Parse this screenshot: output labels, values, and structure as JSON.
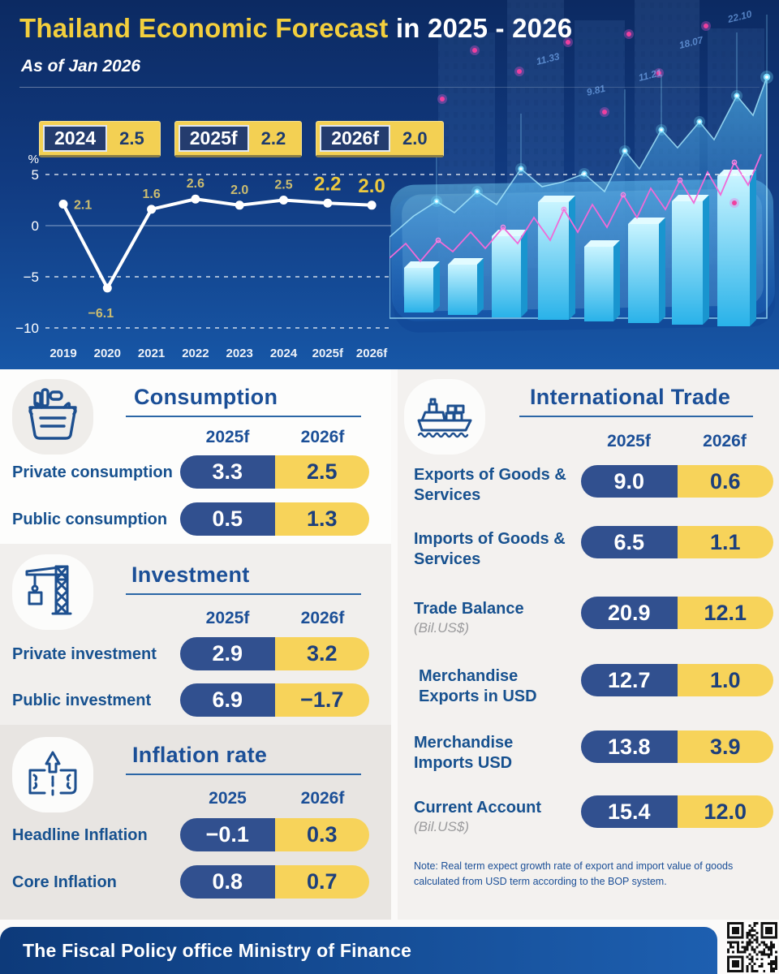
{
  "header": {
    "title_highlight": "Thailand Economic Forecast",
    "title_rest": " in 2025 - 2026",
    "as_of": "As of Jan 2026"
  },
  "summary_badges": [
    {
      "year": "2024",
      "value": "2.5"
    },
    {
      "year": "2025f",
      "value": "2.2"
    },
    {
      "year": "2026f",
      "value": "2.0"
    }
  ],
  "chart_data": {
    "type": "line",
    "title": "",
    "ylabel": "%",
    "categories": [
      "2019",
      "2020",
      "2021",
      "2022",
      "2023",
      "2024",
      "2025f",
      "2026f"
    ],
    "values": [
      2.1,
      -6.1,
      1.6,
      2.6,
      2.0,
      2.5,
      2.2,
      2.0
    ],
    "point_labels": [
      "2.1",
      "−6.1",
      "1.6",
      "2.6",
      "2.0",
      "2.5",
      "2.2",
      "2.0"
    ],
    "emphasized_indexes": [
      6,
      7
    ],
    "yticks": [
      {
        "v": 5,
        "label": "5"
      },
      {
        "v": 0,
        "label": "0"
      },
      {
        "v": -5,
        "label": "−5"
      },
      {
        "v": -10,
        "label": "−10"
      }
    ],
    "ylim": [
      -12.5,
      6.5
    ],
    "grid": "dashed gridlines at 5, -5, -10; solid axis line at 0",
    "legend_position": "none"
  },
  "hero_decor": {
    "numbers": [
      "22.10",
      "18.07",
      "11.33",
      "11.21",
      "9.81"
    ]
  },
  "sections": {
    "consumption": {
      "title": "Consumption",
      "columns": [
        "2025f",
        "2026f"
      ],
      "rows": [
        {
          "label": "Private consumption",
          "values": [
            "3.3",
            "2.5"
          ]
        },
        {
          "label": "Public consumption",
          "values": [
            "0.5",
            "1.3"
          ]
        }
      ]
    },
    "investment": {
      "title": "Investment",
      "columns": [
        "2025f",
        "2026f"
      ],
      "rows": [
        {
          "label": "Private investment",
          "values": [
            "2.9",
            "3.2"
          ]
        },
        {
          "label": "Public investment",
          "values": [
            "6.9",
            "−1.7"
          ]
        }
      ]
    },
    "inflation": {
      "title": "Inflation rate",
      "columns": [
        "2025",
        "2026f"
      ],
      "rows": [
        {
          "label": "Headline Inflation",
          "values": [
            "−0.1",
            "0.3"
          ]
        },
        {
          "label": "Core Inflation",
          "values": [
            "0.8",
            "0.7"
          ]
        }
      ]
    },
    "trade": {
      "title": "International Trade",
      "columns": [
        "2025f",
        "2026f"
      ],
      "rows": [
        {
          "label": "Exports of Goods & Services",
          "sub": "",
          "values": [
            "9.0",
            "0.6"
          ]
        },
        {
          "label": "Imports of Goods & Services",
          "sub": "",
          "values": [
            "6.5",
            "1.1"
          ]
        },
        {
          "label": "Trade Balance",
          "sub": "(Bil.US$)",
          "values": [
            "20.9",
            "12.1"
          ]
        },
        {
          "label": "Merchandise Exports in USD",
          "sub": "",
          "values": [
            "12.7",
            "1.0"
          ]
        },
        {
          "label": "Merchandise Imports USD",
          "sub": "",
          "values": [
            "13.8",
            "3.9"
          ]
        },
        {
          "label": "Current Account",
          "sub": "(Bil.US$)",
          "values": [
            "15.4",
            "12.0"
          ]
        }
      ],
      "note": "Note: Real term expect growth rate of export and import value of goods calculated from USD term according to the BOP system."
    }
  },
  "footer": {
    "text": "The Fiscal Policy office Ministry of Finance"
  },
  "colors": {
    "hero_top": "#0c2a62",
    "hero_bottom": "#1757a7",
    "pill_navy": "#31508f",
    "pill_yellow": "#f7d35a",
    "title_yellow": "#f3cf3d",
    "panel_blue": "#1b4f97",
    "line_white": "#ffffff",
    "decor_pink": "#f05ad2",
    "decor_cyan": "#5fd8ff"
  }
}
